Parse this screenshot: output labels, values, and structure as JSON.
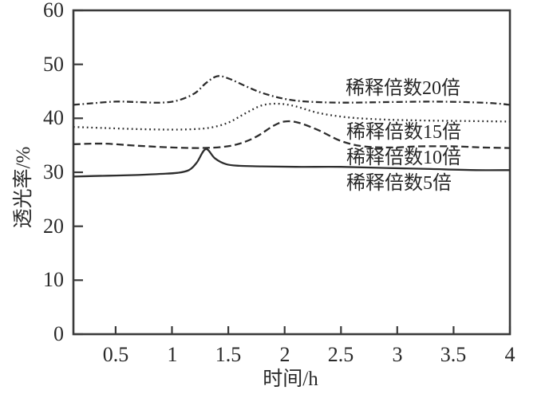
{
  "chart_data": {
    "type": "line",
    "title": "",
    "xlabel": "时间/h",
    "ylabel": "透光率/%",
    "xlim": [
      0.125,
      4
    ],
    "ylim": [
      0,
      60
    ],
    "x_ticks": [
      0.5,
      1,
      1.5,
      2,
      2.5,
      3,
      3.5,
      4
    ],
    "y_ticks": [
      0,
      10,
      20,
      30,
      40,
      50,
      60
    ],
    "grid": false,
    "frame": "box",
    "tick_direction": "in",
    "legend_position": "inline-labels",
    "series": [
      {
        "id": "dilution-5x",
        "name": "稀释倍数5倍",
        "line_style": "solid",
        "x": [
          0.125,
          0.3,
          0.5,
          0.7,
          0.9,
          1.05,
          1.15,
          1.22,
          1.3,
          1.38,
          1.48,
          1.6,
          1.8,
          2.1,
          2.5,
          2.9,
          3.3,
          3.7,
          4.0
        ],
        "y": [
          29.2,
          29.3,
          29.4,
          29.5,
          29.7,
          29.9,
          30.4,
          31.8,
          34.3,
          32.6,
          31.5,
          31.2,
          31.1,
          31.0,
          31.0,
          30.8,
          30.6,
          30.4,
          30.4
        ]
      },
      {
        "id": "dilution-10x",
        "name": "稀释倍数10倍",
        "line_style": "dashed",
        "x": [
          0.125,
          0.4,
          0.7,
          1.0,
          1.25,
          1.45,
          1.6,
          1.75,
          1.9,
          2.0,
          2.12,
          2.3,
          2.5,
          2.7,
          2.95,
          3.2,
          3.5,
          3.75,
          4.0
        ],
        "y": [
          35.2,
          35.3,
          34.9,
          34.6,
          34.5,
          34.7,
          35.3,
          36.6,
          38.6,
          39.4,
          39.2,
          37.8,
          35.8,
          34.8,
          34.6,
          34.8,
          34.8,
          34.6,
          34.5
        ]
      },
      {
        "id": "dilution-15x",
        "name": "稀释倍数15倍",
        "line_style": "dotted",
        "x": [
          0.125,
          0.4,
          0.7,
          1.0,
          1.2,
          1.35,
          1.5,
          1.65,
          1.8,
          1.95,
          2.1,
          2.3,
          2.55,
          2.85,
          3.2,
          3.6,
          4.0
        ],
        "y": [
          38.4,
          38.2,
          38.0,
          37.9,
          38.0,
          38.3,
          39.2,
          40.9,
          42.4,
          42.7,
          42.2,
          41.0,
          40.2,
          39.8,
          39.6,
          39.5,
          39.4
        ]
      },
      {
        "id": "dilution-20x",
        "name": "稀释倍数20倍",
        "line_style": "dashdot",
        "x": [
          0.125,
          0.3,
          0.5,
          0.7,
          0.9,
          1.05,
          1.2,
          1.3,
          1.4,
          1.5,
          1.65,
          1.8,
          2.0,
          2.2,
          2.5,
          2.9,
          3.3,
          3.6,
          3.85,
          4.0
        ],
        "y": [
          42.5,
          42.8,
          43.1,
          43.0,
          42.9,
          43.3,
          44.6,
          46.5,
          47.8,
          47.4,
          46.0,
          44.7,
          43.6,
          43.1,
          42.9,
          43.0,
          43.1,
          43.0,
          42.8,
          42.5
        ]
      }
    ],
    "annotations": [
      {
        "series_id": "dilution-20x",
        "text": "稀释倍数20倍",
        "x": 2.54,
        "y": 45.5
      },
      {
        "series_id": "dilution-15x",
        "text": "稀释倍数15倍",
        "x": 2.55,
        "y": 37.4
      },
      {
        "series_id": "dilution-10x",
        "text": "稀释倍数10倍",
        "x": 2.55,
        "y": 32.6
      },
      {
        "series_id": "dilution-5x",
        "text": "稀释倍数5倍",
        "x": 2.55,
        "y": 28.0
      }
    ]
  },
  "colors": {
    "line": "#2d2d2d",
    "axis": "#3a3a3a",
    "text": "#2a2a2a",
    "background": "#ffffff"
  }
}
